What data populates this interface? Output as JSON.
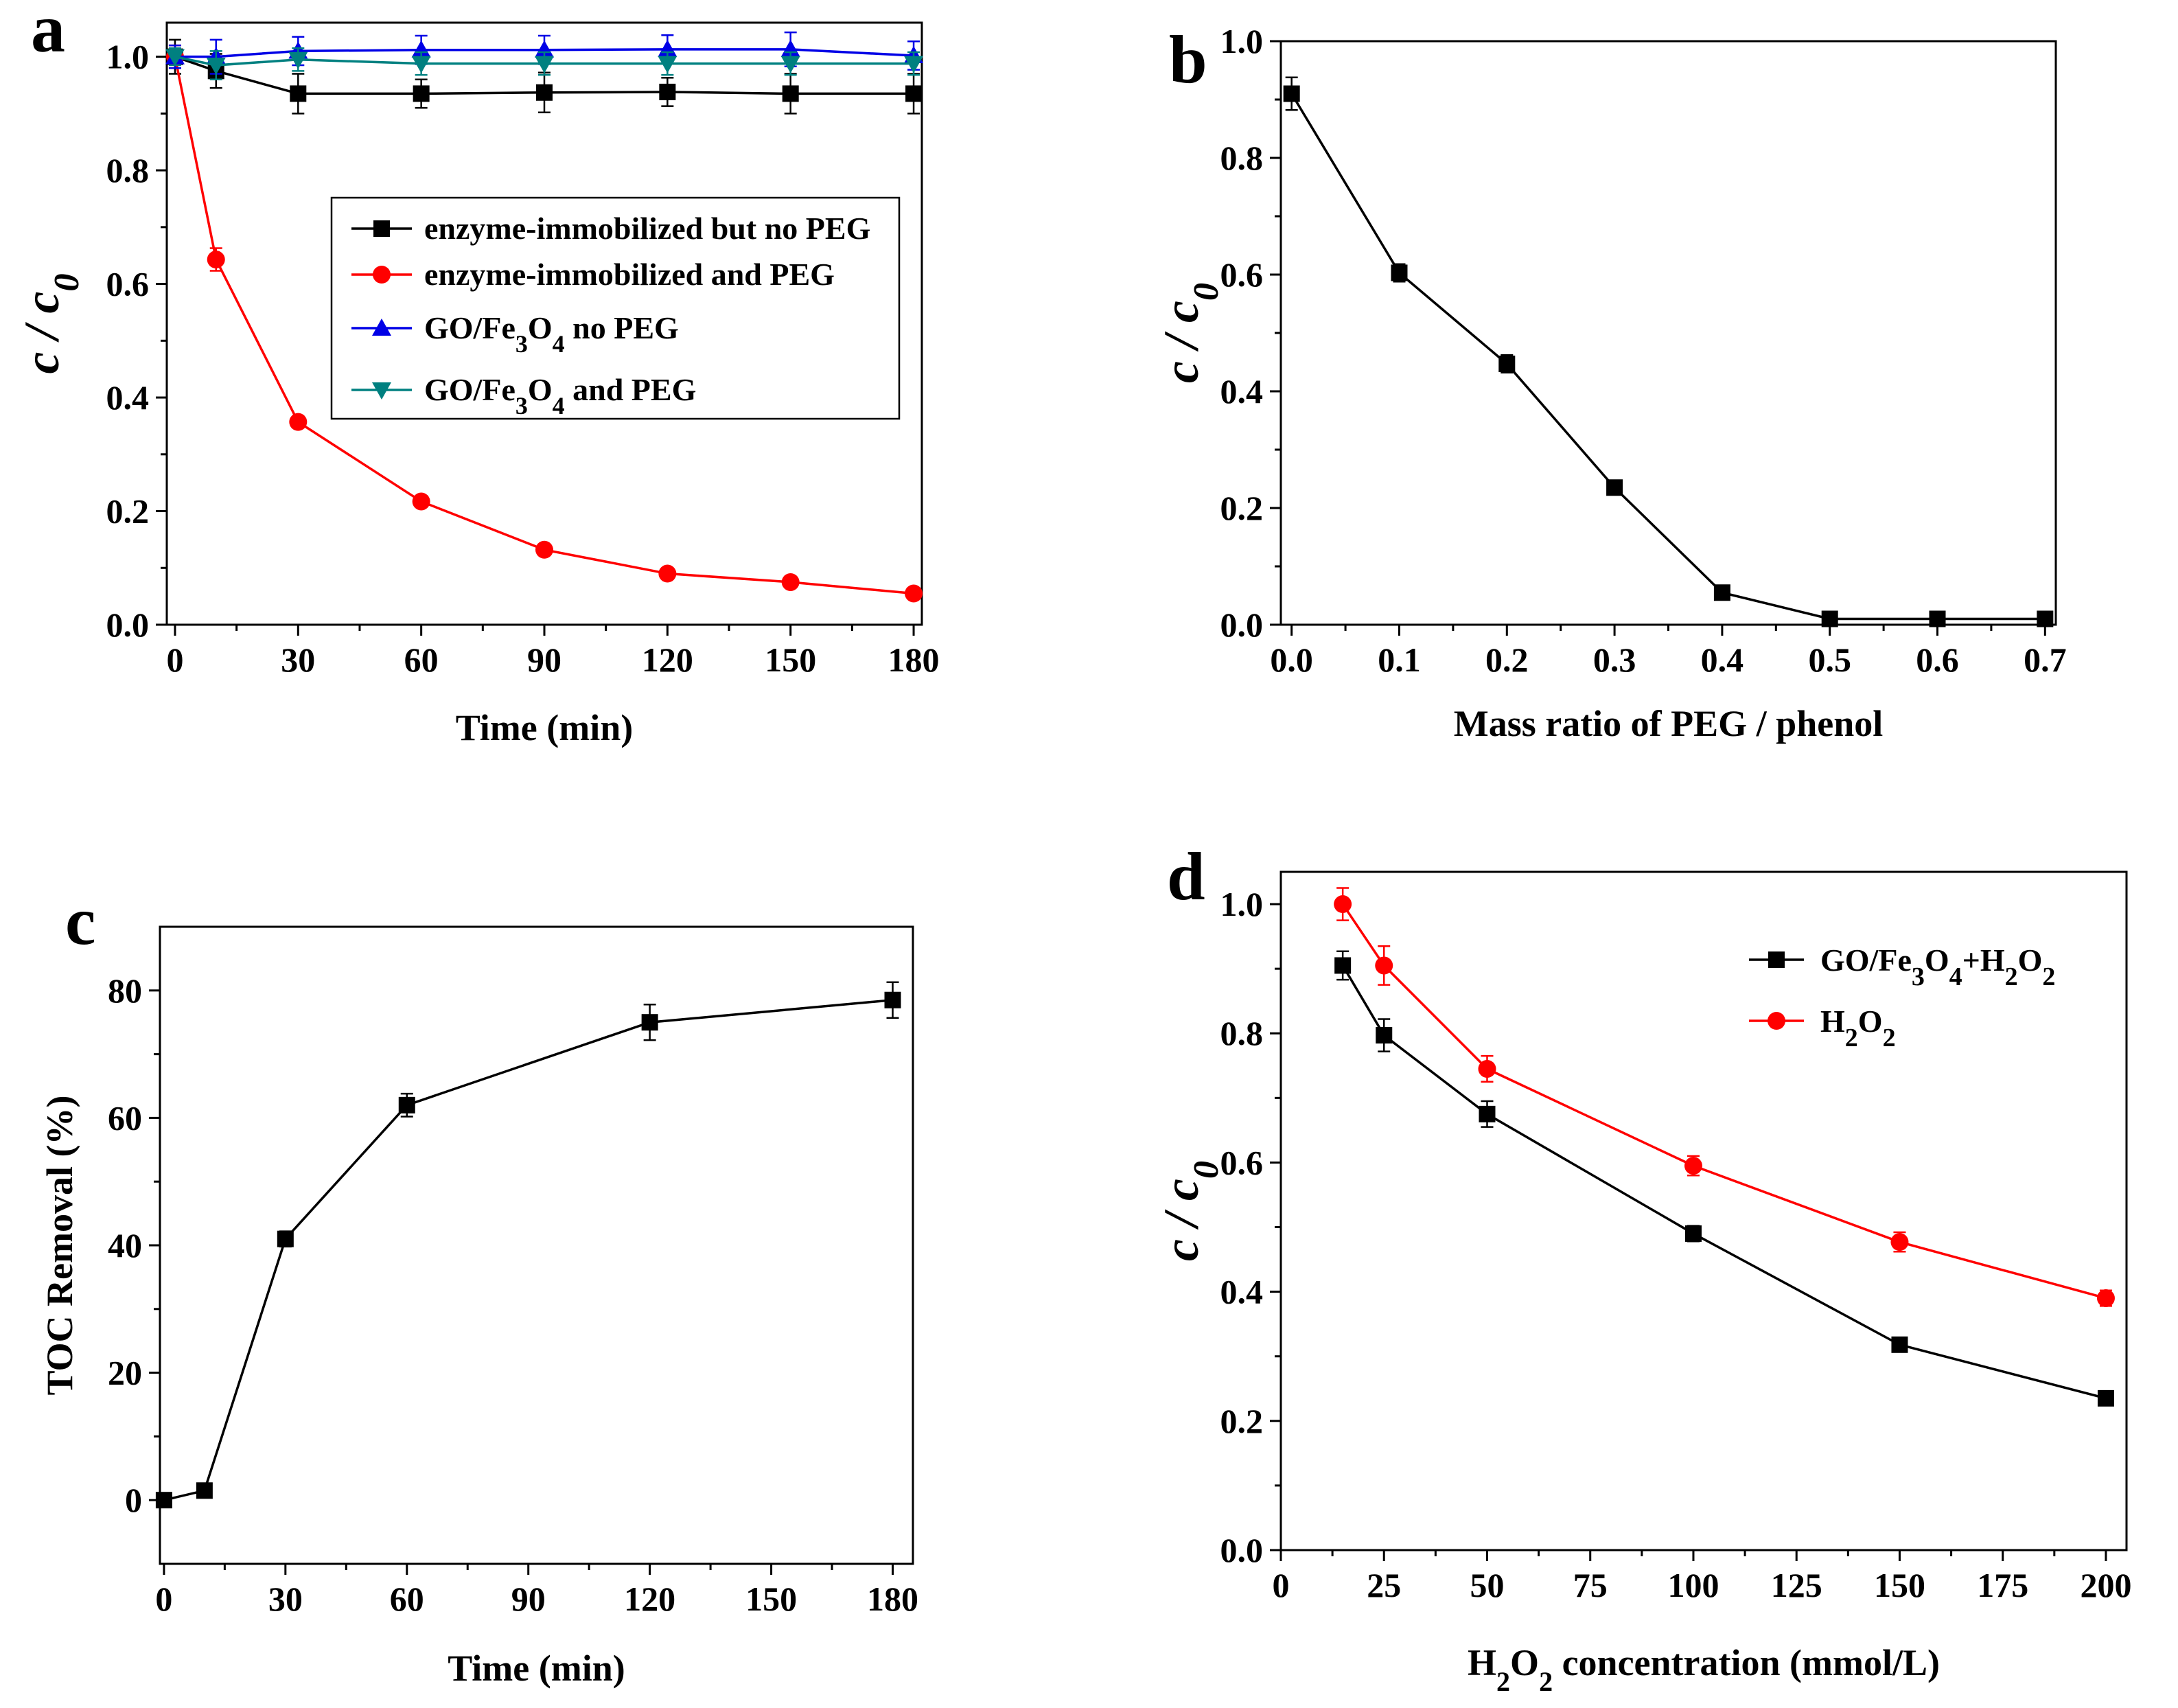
{
  "colors": {
    "black": "#000000",
    "red": "#ff0000",
    "blue": "#0000e6",
    "teal": "#008080"
  },
  "chart_data": [
    {
      "id": "a",
      "panel_label": "a",
      "type": "line",
      "xlabel": "Time (min)",
      "ylabel": {
        "main": "c / c",
        "sub": "0"
      },
      "xlim": [
        -2,
        182
      ],
      "ylim": [
        0,
        1.06
      ],
      "xticks": [
        0,
        30,
        60,
        90,
        120,
        150,
        180
      ],
      "xtick_labels": [
        "0",
        "30",
        "60",
        "90",
        "120",
        "150",
        "180"
      ],
      "yticks": [
        0,
        0.2,
        0.4,
        0.6,
        0.8,
        1.0
      ],
      "ytick_labels": [
        "0.0",
        "0.2",
        "0.4",
        "0.6",
        "0.8",
        "1.0"
      ],
      "x": [
        0,
        10,
        30,
        60,
        90,
        120,
        150,
        180
      ],
      "legend_position": "center-right",
      "series": [
        {
          "name": "enzyme-immobilized but no PEG",
          "color_key": "black",
          "marker": "square",
          "legend": [
            {
              "t": "enzyme-immobilized but no PEG"
            }
          ],
          "values": [
            1.0,
            0.975,
            0.935,
            0.935,
            0.937,
            0.938,
            0.935,
            0.935
          ],
          "errors": [
            0.03,
            0.03,
            0.035,
            0.025,
            0.035,
            0.025,
            0.035,
            0.035
          ]
        },
        {
          "name": "enzyme-immobilized and PEG",
          "color_key": "red",
          "marker": "circle",
          "legend": [
            {
              "t": "enzyme-immobilized and PEG"
            }
          ],
          "values": [
            1.0,
            0.643,
            0.357,
            0.217,
            0.132,
            0.09,
            0.075,
            0.055
          ],
          "errors": [
            0.02,
            0.02,
            0.01,
            0.008,
            0.008,
            0.007,
            0.007,
            0.006
          ]
        },
        {
          "name": "GO/Fe3O4 no PEG",
          "color_key": "blue",
          "marker": "triangle-up",
          "legend": [
            {
              "t": "GO/Fe"
            },
            {
              "t": "3",
              "sub": true
            },
            {
              "t": "O"
            },
            {
              "t": "4",
              "sub": true
            },
            {
              "t": " no PEG"
            }
          ],
          "values": [
            1.0,
            1.0,
            1.01,
            1.012,
            1.012,
            1.013,
            1.013,
            1.002
          ],
          "errors": [
            0.02,
            0.03,
            0.025,
            0.025,
            0.025,
            0.025,
            0.03,
            0.025
          ]
        },
        {
          "name": "GO/Fe3O4 and PEG",
          "color_key": "teal",
          "marker": "triangle-down",
          "legend": [
            {
              "t": "GO/Fe"
            },
            {
              "t": "3",
              "sub": true
            },
            {
              "t": "O"
            },
            {
              "t": "4",
              "sub": true
            },
            {
              "t": " and PEG"
            }
          ],
          "values": [
            1.0,
            0.985,
            0.995,
            0.988,
            0.988,
            0.988,
            0.988,
            0.988
          ],
          "errors": [
            0.015,
            0.025,
            0.02,
            0.02,
            0.02,
            0.02,
            0.02,
            0.02
          ]
        }
      ]
    },
    {
      "id": "b",
      "panel_label": "b",
      "type": "line",
      "xlabel": "Mass ratio of PEG / phenol",
      "ylabel": {
        "main": "c / c",
        "sub": "0"
      },
      "xlim": [
        -0.01,
        0.71
      ],
      "ylim": [
        0,
        1.0
      ],
      "xticks": [
        0.0,
        0.1,
        0.2,
        0.3,
        0.4,
        0.5,
        0.6,
        0.7
      ],
      "xtick_labels": [
        "0.0",
        "0.1",
        "0.2",
        "0.3",
        "0.4",
        "0.5",
        "0.6",
        "0.7"
      ],
      "yticks": [
        0,
        0.2,
        0.4,
        0.6,
        0.8,
        1.0
      ],
      "ytick_labels": [
        "0.0",
        "0.2",
        "0.4",
        "0.6",
        "0.8",
        "1.0"
      ],
      "x": [
        0.0,
        0.1,
        0.2,
        0.3,
        0.4,
        0.5,
        0.6,
        0.7
      ],
      "series": [
        {
          "name": "c/c0",
          "color_key": "black",
          "marker": "square",
          "values": [
            0.91,
            0.603,
            0.447,
            0.235,
            0.055,
            0.01,
            0.01,
            0.01
          ],
          "errors": [
            0.028,
            0.015,
            0.015,
            0.006,
            0.005,
            0.0,
            0.0,
            0.0
          ]
        }
      ]
    },
    {
      "id": "c",
      "panel_label": "c",
      "type": "line",
      "xlabel": "Time (min)",
      "ylabel": {
        "main": "TOC Removal (%)",
        "sub": ""
      },
      "xlim": [
        -1,
        185
      ],
      "ylim": [
        -10,
        90
      ],
      "xticks": [
        0,
        30,
        60,
        90,
        120,
        150,
        180
      ],
      "xtick_labels": [
        "0",
        "30",
        "60",
        "90",
        "120",
        "150",
        "180"
      ],
      "yticks": [
        0,
        20,
        40,
        60,
        80
      ],
      "ytick_labels": [
        "0",
        "20",
        "40",
        "60",
        "80"
      ],
      "x": [
        0,
        10,
        30,
        60,
        120,
        180
      ],
      "series": [
        {
          "name": "TOC Removal",
          "color_key": "black",
          "marker": "square",
          "values": [
            0,
            1.5,
            41,
            62,
            75,
            78.5
          ],
          "errors": [
            0,
            0,
            1.2,
            1.8,
            2.8,
            2.8
          ]
        }
      ]
    },
    {
      "id": "d",
      "panel_label": "d",
      "type": "line",
      "xlabel_parts": [
        {
          "t": "H"
        },
        {
          "t": "2",
          "sub": true
        },
        {
          "t": "O"
        },
        {
          "t": "2",
          "sub": true
        },
        {
          "t": " concentration (mmol/L)"
        }
      ],
      "ylabel": {
        "main": "c / c",
        "sub": "0"
      },
      "xlim": [
        0,
        205
      ],
      "ylim": [
        0,
        1.05
      ],
      "xticks": [
        0,
        25,
        50,
        75,
        100,
        125,
        150,
        175,
        200
      ],
      "xtick_labels": [
        "0",
        "25",
        "50",
        "75",
        "100",
        "125",
        "150",
        "175",
        "200"
      ],
      "yticks": [
        0,
        0.2,
        0.4,
        0.6,
        0.8,
        1.0
      ],
      "ytick_labels": [
        "0.0",
        "0.2",
        "0.4",
        "0.6",
        "0.8",
        "1.0"
      ],
      "x": [
        15,
        25,
        50,
        100,
        150,
        200
      ],
      "legend_position": "top-right",
      "series": [
        {
          "name": "GO/Fe3O4+H2O2",
          "color_key": "black",
          "marker": "square",
          "legend": [
            {
              "t": "GO/Fe"
            },
            {
              "t": "3",
              "sub": true
            },
            {
              "t": "O"
            },
            {
              "t": "4",
              "sub": true
            },
            {
              "t": "+H"
            },
            {
              "t": "2",
              "sub": true
            },
            {
              "t": "O"
            },
            {
              "t": "2",
              "sub": true
            }
          ],
          "values": [
            0.905,
            0.797,
            0.675,
            0.49,
            0.318,
            0.235
          ],
          "errors": [
            0.022,
            0.025,
            0.02,
            0.012,
            0.008,
            0.008
          ]
        },
        {
          "name": "H2O2",
          "color_key": "red",
          "marker": "circle",
          "legend": [
            {
              "t": "H"
            },
            {
              "t": "2",
              "sub": true
            },
            {
              "t": "O"
            },
            {
              "t": "2",
              "sub": true
            }
          ],
          "values": [
            1.0,
            0.905,
            0.745,
            0.595,
            0.477,
            0.39
          ],
          "errors": [
            0.025,
            0.03,
            0.02,
            0.015,
            0.015,
            0.012
          ]
        }
      ]
    }
  ]
}
